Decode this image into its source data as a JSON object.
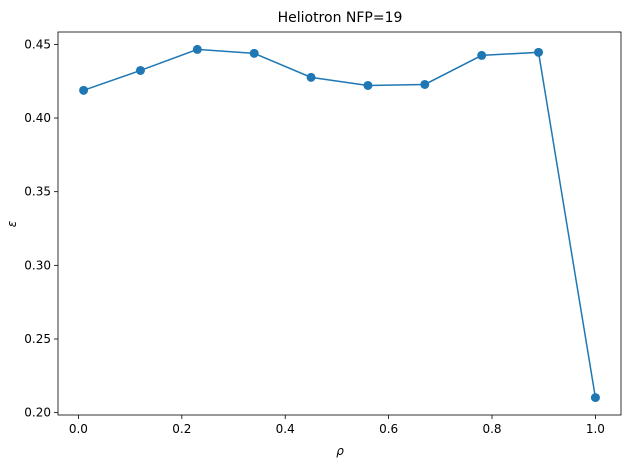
{
  "chart_data": {
    "type": "line",
    "title": "Heliotron NFP=19",
    "xlabel": "ρ",
    "ylabel": "ε",
    "x": [
      0.01,
      0.12,
      0.23,
      0.34,
      0.45,
      0.56,
      0.67,
      0.78,
      0.89,
      1.0
    ],
    "series": [
      {
        "name": "ε",
        "color": "#1f77b4",
        "values": [
          0.4188,
          0.4323,
          0.4466,
          0.4439,
          0.4276,
          0.4221,
          0.4228,
          0.4425,
          0.4446,
          0.2102
        ]
      }
    ],
    "xlim": [
      -0.0395,
      1.0495
    ],
    "ylim": [
      0.1984,
      0.4584
    ],
    "xticks": [
      {
        "value": 0,
        "label": "0.0"
      },
      {
        "value": 0.2,
        "label": "0.2"
      },
      {
        "value": 0.4,
        "label": "0.4"
      },
      {
        "value": 0.6,
        "label": "0.6"
      },
      {
        "value": 0.8,
        "label": "0.8"
      },
      {
        "value": 1.0,
        "label": "1.0"
      }
    ],
    "yticks": [
      {
        "value": 0.2,
        "label": "0.20"
      },
      {
        "value": 0.25,
        "label": "0.25"
      },
      {
        "value": 0.3,
        "label": "0.30"
      },
      {
        "value": 0.35,
        "label": "0.35"
      },
      {
        "value": 0.4,
        "label": "0.40"
      },
      {
        "value": 0.45,
        "label": "0.45"
      }
    ],
    "grid": false
  }
}
